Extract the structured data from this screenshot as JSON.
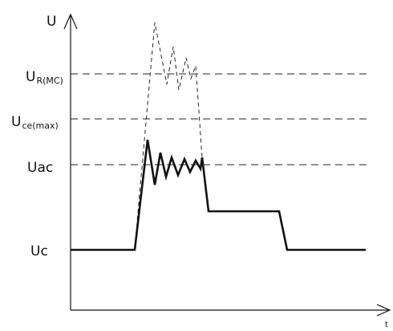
{
  "axes": {
    "y_label": "U",
    "x_label": "t"
  },
  "levels": {
    "u_rimc": {
      "main": "U",
      "sub": "R(MC)"
    },
    "u_ce_max": {
      "main": "U",
      "sub": "ce(max)"
    },
    "u_ac": {
      "main": "Uac"
    },
    "u_c": {
      "main": "Uc"
    }
  }
}
